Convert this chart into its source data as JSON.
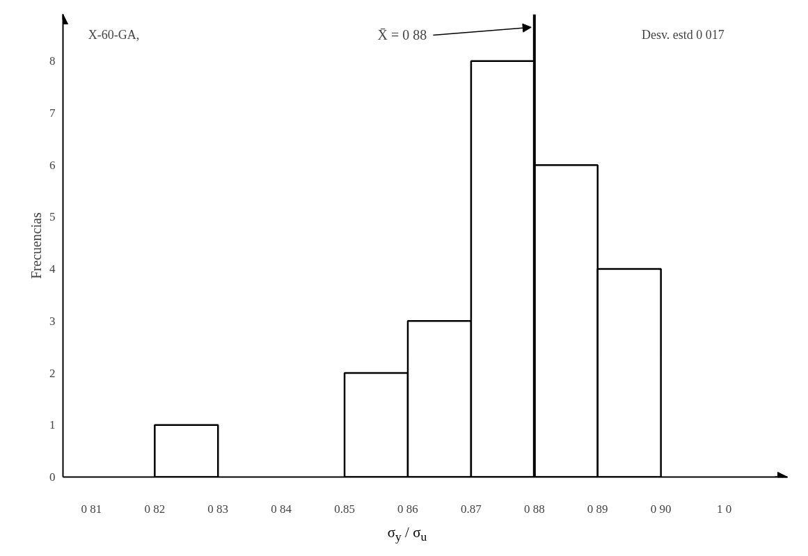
{
  "chart_data": {
    "type": "histogram",
    "bins": [
      0.81,
      0.82,
      0.83,
      0.84,
      0.85,
      0.86,
      0.87,
      0.88,
      0.89,
      0.9
    ],
    "values": [
      0,
      1,
      0,
      0,
      2,
      3,
      8,
      6,
      4
    ],
    "color": "#ffffff",
    "xlabel": "σ$_{y}$ / σ$_{u}$",
    "ylabel": "Frecuencias",
    "xlim": [
      0.8055,
      0.92
    ],
    "ylim": [
      0,
      8.9
    ],
    "xticks": [
      {
        "value": 0.81,
        "label": "0 81"
      },
      {
        "value": 0.82,
        "label": "0 82"
      },
      {
        "value": 0.83,
        "label": "0 83"
      },
      {
        "value": 0.84,
        "label": "0 84"
      },
      {
        "value": 0.85,
        "label": "0.85"
      },
      {
        "value": 0.86,
        "label": "0 86"
      },
      {
        "value": 0.87,
        "label": "0.87"
      },
      {
        "value": 0.88,
        "label": "0 88"
      },
      {
        "value": 0.89,
        "label": "0 89"
      },
      {
        "value": 0.9,
        "label": "0 90"
      },
      {
        "value": 0.91,
        "label": "1 0"
      }
    ],
    "yticks": [
      0,
      1,
      2,
      3,
      4,
      5,
      6,
      7,
      8
    ],
    "ref_lines": [
      {
        "axis": "x",
        "value": 0.88,
        "label": "X̄ = 0 88"
      }
    ],
    "annotations": [
      "X-60-GA,",
      "Desv. estd     0 017"
    ],
    "grid": false
  }
}
